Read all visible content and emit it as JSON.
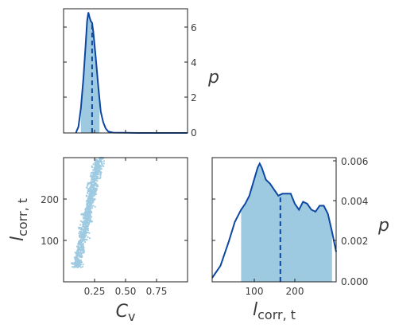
{
  "chart_data": [
    {
      "type": "area",
      "panel": "top-left",
      "description_of_marks": "1D posterior density of C_v with filled credible region and dashed median line",
      "xlim": [
        0.0,
        1.0
      ],
      "ylim": [
        0,
        7
      ],
      "y_axis_side": "right",
      "yticks": [
        0,
        2,
        4,
        6
      ],
      "ylabel": "p",
      "x": [
        0.1,
        0.12,
        0.14,
        0.16,
        0.18,
        0.19,
        0.2,
        0.21,
        0.22,
        0.23,
        0.24,
        0.26,
        0.28,
        0.3,
        0.32,
        0.34,
        0.36,
        0.4,
        0.5,
        0.6,
        0.7,
        0.8,
        0.9,
        1.0
      ],
      "y": [
        0.02,
        0.35,
        1.4,
        3.1,
        5.2,
        6.3,
        6.8,
        6.5,
        6.3,
        6.2,
        5.7,
        4.2,
        2.6,
        1.2,
        0.6,
        0.25,
        0.08,
        0.02,
        0.01,
        0.0,
        0.0,
        0.0,
        0.0,
        0.0
      ],
      "shaded_range": [
        0.14,
        0.29
      ],
      "median": 0.23,
      "colors": {
        "line": "#0d47a1",
        "fill": "#9ecae1"
      }
    },
    {
      "type": "scatter",
      "panel": "bottom-left",
      "xlabel": "C_v",
      "ylabel": "l_corr,t",
      "xlim": [
        0.0,
        1.0
      ],
      "ylim": [
        0,
        300
      ],
      "xticks": [
        "0.25",
        "0.50",
        "0.75"
      ],
      "yticks": [
        "100",
        "200"
      ],
      "relation": "l_corr,t increases steeply with C_v",
      "points": [
        [
          0.11,
          40
        ],
        [
          0.12,
          55
        ],
        [
          0.13,
          70
        ],
        [
          0.14,
          85
        ],
        [
          0.15,
          100
        ],
        [
          0.16,
          115
        ],
        [
          0.17,
          130
        ],
        [
          0.18,
          145
        ],
        [
          0.19,
          160
        ],
        [
          0.2,
          175
        ],
        [
          0.21,
          190
        ],
        [
          0.22,
          205
        ],
        [
          0.23,
          220
        ],
        [
          0.24,
          235
        ],
        [
          0.25,
          250
        ],
        [
          0.26,
          262
        ],
        [
          0.27,
          275
        ],
        [
          0.28,
          288
        ],
        [
          0.29,
          298
        ],
        [
          0.3,
          300
        ]
      ],
      "colors": {
        "points": "#9ecae1"
      }
    },
    {
      "type": "area",
      "panel": "bottom-right",
      "description_of_marks": "1D posterior density of l_corr,t with filled credible region and dashed median line",
      "xlabel": "l_corr,t",
      "xlim": [
        0,
        300
      ],
      "ylim": [
        0,
        0.0062
      ],
      "y_axis_side": "right",
      "xticks": [
        "100",
        "200"
      ],
      "yticks": [
        "0.000",
        "0.002",
        "0.004",
        "0.006"
      ],
      "ylabel": "p",
      "x": [
        0,
        20,
        40,
        55,
        70,
        80,
        90,
        100,
        110,
        115,
        120,
        130,
        140,
        150,
        160,
        170,
        180,
        190,
        200,
        210,
        220,
        230,
        240,
        250,
        260,
        270,
        280,
        290,
        300
      ],
      "y": [
        0.0002,
        0.0008,
        0.002,
        0.003,
        0.0036,
        0.0039,
        0.0043,
        0.005,
        0.0057,
        0.0059,
        0.0057,
        0.0051,
        0.0049,
        0.0046,
        0.0043,
        0.0044,
        0.0044,
        0.0044,
        0.0039,
        0.0036,
        0.004,
        0.0039,
        0.0036,
        0.0035,
        0.0038,
        0.0038,
        0.0034,
        0.0025,
        0.0015
      ],
      "shaded_range": [
        70,
        290
      ],
      "median": 165,
      "colors": {
        "line": "#0d47a1",
        "fill": "#9ecae1"
      }
    }
  ]
}
